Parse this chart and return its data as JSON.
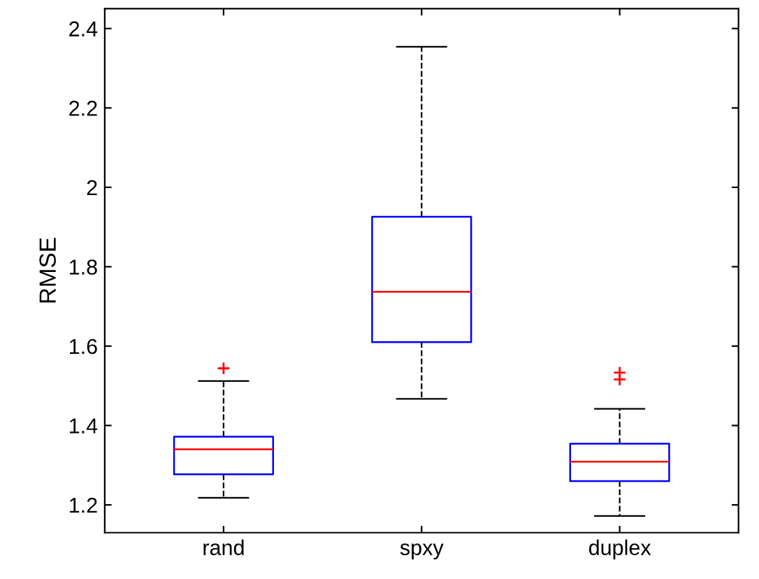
{
  "chart_data": {
    "type": "box",
    "ylabel": "RMSE",
    "categories": [
      "rand",
      "spxy",
      "duplex"
    ],
    "boxes": [
      {
        "low": 1.218,
        "q1": 1.277,
        "median": 1.34,
        "q3": 1.372,
        "high": 1.512,
        "outliers": [
          1.544
        ]
      },
      {
        "low": 1.467,
        "q1": 1.61,
        "median": 1.737,
        "q3": 1.926,
        "high": 2.354
      },
      {
        "low": 1.172,
        "q1": 1.26,
        "median": 1.309,
        "q3": 1.354,
        "high": 1.442,
        "outliers": [
          1.533,
          1.516
        ]
      }
    ],
    "color": "#0000ff",
    "ylim": [
      1.13,
      2.45
    ],
    "yticks": [
      1.2,
      1.4,
      1.6,
      1.8,
      2,
      2.2,
      2.4
    ],
    "grid": false,
    "marker": "cross",
    "line_style": "dashed"
  }
}
